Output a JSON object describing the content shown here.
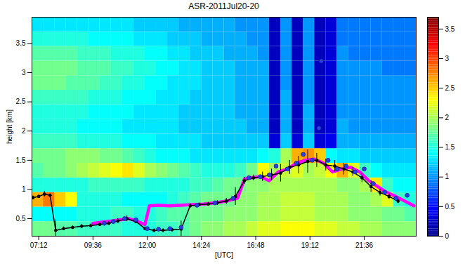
{
  "chart_data": {
    "type": "heatmap",
    "title": "ASR-2011Jul20-20",
    "xlabel": "[UTC]",
    "ylabel": "height [km]",
    "xlim": [
      6.9,
      23.9
    ],
    "xticks": [
      {
        "value": 7.2,
        "label": "07:12"
      },
      {
        "value": 9.6,
        "label": "09:36"
      },
      {
        "value": 12,
        "label": "12:00"
      },
      {
        "value": 14.4,
        "label": "14:24"
      },
      {
        "value": 16.8,
        "label": "16:48"
      },
      {
        "value": 19.2,
        "label": "19:12"
      },
      {
        "value": 21.6,
        "label": "21:36"
      }
    ],
    "ylim": [
      0.2,
      3.95
    ],
    "yticks": [
      0.5,
      1,
      1.5,
      2,
      2.5,
      3,
      3.5
    ],
    "heatmap": {
      "x_edges": [
        6.9,
        7.4,
        7.9,
        8.4,
        8.9,
        9.4,
        9.9,
        10.4,
        10.9,
        11.4,
        11.9,
        12.4,
        12.9,
        13.4,
        13.9,
        14.4,
        14.9,
        15.4,
        15.9,
        16.4,
        16.9,
        17.4,
        17.9,
        18.4,
        18.9,
        19.4,
        19.9,
        20.4,
        20.9,
        21.4,
        21.9,
        22.4,
        22.9,
        23.4,
        23.9
      ],
      "y_edges": [
        0.2,
        0.45,
        0.7,
        0.95,
        1.2,
        1.45,
        1.7,
        1.95,
        2.2,
        2.45,
        2.7,
        2.95,
        3.2,
        3.45,
        3.7,
        3.95
      ],
      "values": [
        [
          1.8,
          1.8,
          1.7,
          1.7,
          1.6,
          1.6,
          1.6,
          1.6,
          1.5,
          1.5,
          1.5,
          1.6,
          1.6,
          1.7,
          1.8,
          1.9,
          1.9,
          2.0,
          2.0,
          2.1,
          2.2,
          2.2,
          2.3,
          2.3,
          2.3,
          2.2,
          2.2,
          2.1,
          2.1,
          2.0,
          2.0,
          1.9,
          1.9,
          1.9
        ],
        [
          1.4,
          1.4,
          1.4,
          1.4,
          1.5,
          1.5,
          1.5,
          1.6,
          1.6,
          1.5,
          1.5,
          1.6,
          1.7,
          1.7,
          1.8,
          1.8,
          1.8,
          1.9,
          1.9,
          1.9,
          2.0,
          2.0,
          2.1,
          2.1,
          2.1,
          2.0,
          2.0,
          2.0,
          1.9,
          1.9,
          1.9,
          1.8,
          1.8,
          1.7
        ],
        [
          2.6,
          2.8,
          2.5,
          2.3,
          1.5,
          1.5,
          1.5,
          1.5,
          1.4,
          1.4,
          1.4,
          1.4,
          1.5,
          1.6,
          1.7,
          1.8,
          1.8,
          1.8,
          1.9,
          1.9,
          2.0,
          2.0,
          2.1,
          2.1,
          2.1,
          2.0,
          2.0,
          2.0,
          1.9,
          1.9,
          2.0,
          2.2,
          1.6,
          1.5
        ],
        [
          1.5,
          1.5,
          1.5,
          1.5,
          1.5,
          1.6,
          1.6,
          1.6,
          1.6,
          1.6,
          1.5,
          1.5,
          1.5,
          1.5,
          1.6,
          1.6,
          1.7,
          1.8,
          1.8,
          1.9,
          1.9,
          2.0,
          2.0,
          2.0,
          2.0,
          2.0,
          2.0,
          1.9,
          1.9,
          2.0,
          2.4,
          1.6,
          1.4,
          1.4
        ],
        [
          1.7,
          1.8,
          1.8,
          1.9,
          2.0,
          2.1,
          2.2,
          2.3,
          2.4,
          2.2,
          2.0,
          1.9,
          1.8,
          1.7,
          1.6,
          1.5,
          1.5,
          1.5,
          1.6,
          1.8,
          2.3,
          2.0,
          2.1,
          2.2,
          2.0,
          2.1,
          2.3,
          2.6,
          2.2,
          1.6,
          1.4,
          1.3,
          1.3,
          1.3
        ],
        [
          1.8,
          1.8,
          1.8,
          1.9,
          1.9,
          1.9,
          1.8,
          1.8,
          1.7,
          1.6,
          1.5,
          1.4,
          1.4,
          1.4,
          1.3,
          1.3,
          1.3,
          1.3,
          1.3,
          1.3,
          1.4,
          1.5,
          2.0,
          2.6,
          2.7,
          2.5,
          1.4,
          1.3,
          1.3,
          1.2,
          1.2,
          1.2,
          1.2,
          1.2
        ],
        [
          1.6,
          1.6,
          1.6,
          1.6,
          1.5,
          1.5,
          1.5,
          1.5,
          1.4,
          1.4,
          1.4,
          1.3,
          1.3,
          1.3,
          1.3,
          1.2,
          1.2,
          1.2,
          1.2,
          1.2,
          1.2,
          0.3,
          1.2,
          0.3,
          1.2,
          0.3,
          0.4,
          1.1,
          1.1,
          1.1,
          1.1,
          1.1,
          1.1,
          1.1
        ],
        [
          1.5,
          1.5,
          1.5,
          1.5,
          1.4,
          1.4,
          1.4,
          1.4,
          1.3,
          1.3,
          1.3,
          1.3,
          1.3,
          1.2,
          1.2,
          1.2,
          1.2,
          1.2,
          1.2,
          1.1,
          1.1,
          0.2,
          1.1,
          0.2,
          1.1,
          0.2,
          0.3,
          1.1,
          1.0,
          1.0,
          1.0,
          1.0,
          1.0,
          1.0
        ],
        [
          1.5,
          1.5,
          1.5,
          1.5,
          1.5,
          1.4,
          1.4,
          1.4,
          1.4,
          1.3,
          1.3,
          1.3,
          1.3,
          1.2,
          1.2,
          1.2,
          1.2,
          1.2,
          1.1,
          1.1,
          1.1,
          0.2,
          1.1,
          0.2,
          1.1,
          0.2,
          0.3,
          1.0,
          1.0,
          1.0,
          1.0,
          1.0,
          1.0,
          1.0
        ],
        [
          1.6,
          1.6,
          1.6,
          1.6,
          1.6,
          1.5,
          1.5,
          1.5,
          1.4,
          1.4,
          1.4,
          1.3,
          1.3,
          1.3,
          1.2,
          1.2,
          1.2,
          1.2,
          1.1,
          1.1,
          1.1,
          0.2,
          1.1,
          0.2,
          1.0,
          0.2,
          0.3,
          1.0,
          1.0,
          1.0,
          1.0,
          1.0,
          1.0,
          1.0
        ],
        [
          1.8,
          1.8,
          1.8,
          1.7,
          1.7,
          1.7,
          1.6,
          1.6,
          1.5,
          1.5,
          1.4,
          1.4,
          1.3,
          1.3,
          1.3,
          1.2,
          1.2,
          1.2,
          1.1,
          1.1,
          1.1,
          0.2,
          1.0,
          0.2,
          1.0,
          0.2,
          0.3,
          1.0,
          1.0,
          1.0,
          1.0,
          1.0,
          1.0,
          1.0
        ],
        [
          1.8,
          1.8,
          1.8,
          1.8,
          1.7,
          1.7,
          1.7,
          1.6,
          1.6,
          1.5,
          1.5,
          1.4,
          1.4,
          1.3,
          1.3,
          1.2,
          1.2,
          1.2,
          1.1,
          1.1,
          1.1,
          0.2,
          1.0,
          0.2,
          1.0,
          0.2,
          0.3,
          1.0,
          1.0,
          1.0,
          1.0,
          0.9,
          0.9,
          0.9
        ],
        [
          1.7,
          1.7,
          1.7,
          1.7,
          1.6,
          1.6,
          1.6,
          1.5,
          1.5,
          1.5,
          1.4,
          1.4,
          1.3,
          1.3,
          1.2,
          1.2,
          1.2,
          1.1,
          1.1,
          1.1,
          1.0,
          0.2,
          1.0,
          0.2,
          1.0,
          0.2,
          0.3,
          1.0,
          0.9,
          0.9,
          0.9,
          0.9,
          0.9,
          0.9
        ],
        [
          1.5,
          1.5,
          1.5,
          1.5,
          1.5,
          1.4,
          1.4,
          1.4,
          1.4,
          1.3,
          1.3,
          1.3,
          1.2,
          1.2,
          1.2,
          1.1,
          1.1,
          1.1,
          1.1,
          1.0,
          1.0,
          0.2,
          1.0,
          0.2,
          1.0,
          0.2,
          0.3,
          0.9,
          0.9,
          0.9,
          0.9,
          0.9,
          0.9,
          0.9
        ],
        [
          1.3,
          1.3,
          1.3,
          1.3,
          1.3,
          1.3,
          1.3,
          1.3,
          1.3,
          1.2,
          1.2,
          1.2,
          1.2,
          1.1,
          1.1,
          1.1,
          1.1,
          1.1,
          1.0,
          1.0,
          1.0,
          0.2,
          1.0,
          0.2,
          1.0,
          0.2,
          0.3,
          0.9,
          0.9,
          0.9,
          0.9,
          0.9,
          0.9,
          0.9
        ]
      ]
    },
    "colorbar": {
      "range": [
        0,
        3.7
      ],
      "ticks": [
        0,
        0.5,
        1,
        1.5,
        2,
        2.5,
        3,
        3.5
      ]
    },
    "series": [
      {
        "type": "line",
        "color": "#ff00ff",
        "marker": "none",
        "x": [
          9.6,
          10.0,
          10.4,
          10.8,
          11.2,
          11.6,
          11.9,
          12.1,
          12.5,
          13.0,
          13.5,
          14.0,
          14.5,
          15.0,
          15.5,
          16.0,
          16.3,
          16.6,
          17.0,
          17.4,
          17.8,
          18.2,
          18.6,
          19.0,
          19.4,
          19.8,
          20.2,
          20.6,
          21.0,
          21.4,
          21.8,
          22.2,
          22.6,
          23.0,
          23.4,
          23.8
        ],
        "values": [
          0.42,
          0.44,
          0.46,
          0.48,
          0.5,
          0.45,
          0.4,
          0.72,
          0.73,
          0.72,
          0.73,
          0.74,
          0.75,
          0.77,
          0.8,
          0.85,
          1.18,
          1.2,
          1.22,
          1.15,
          1.3,
          1.35,
          1.45,
          1.5,
          1.52,
          1.45,
          1.3,
          1.35,
          1.38,
          1.3,
          1.15,
          1.05,
          0.95,
          0.88,
          0.8,
          0.72
        ]
      },
      {
        "type": "line",
        "color": "#000000",
        "marker": "o",
        "x": [
          6.95,
          7.2,
          7.45,
          7.7,
          7.95,
          8.3,
          8.7,
          9.1,
          9.5,
          9.9,
          10.3,
          10.7,
          11.1,
          11.5,
          11.9,
          12.3,
          12.7,
          13.1,
          13.5,
          13.9,
          14.3,
          14.7,
          15.1,
          15.5,
          15.9,
          16.3,
          16.7,
          17.1,
          17.5,
          17.9,
          18.3,
          18.7,
          19.1,
          19.5,
          19.9,
          20.3,
          20.7,
          21.1,
          21.5,
          21.9,
          22.3,
          22.7,
          23.1
        ],
        "values": [
          0.86,
          0.88,
          0.92,
          0.9,
          0.3,
          0.33,
          0.35,
          0.37,
          0.38,
          0.4,
          0.42,
          0.46,
          0.5,
          0.45,
          0.33,
          0.3,
          0.3,
          0.31,
          0.32,
          0.72,
          0.74,
          0.75,
          0.77,
          0.8,
          0.88,
          1.15,
          1.2,
          1.22,
          1.25,
          1.28,
          1.38,
          1.42,
          1.48,
          1.5,
          1.42,
          1.4,
          1.35,
          1.3,
          1.2,
          1.05,
          0.95,
          0.88,
          0.8
        ],
        "errors": [
          0.03,
          0.03,
          0.05,
          0.03,
          0.18,
          0.03,
          0.03,
          0.03,
          0.03,
          0.03,
          0.03,
          0.04,
          0.05,
          0.03,
          0.03,
          0.03,
          0.03,
          0.03,
          0.14,
          0.04,
          0.03,
          0.03,
          0.04,
          0.05,
          0.15,
          0.06,
          0.05,
          0.08,
          0.1,
          0.15,
          0.12,
          0.15,
          0.2,
          0.12,
          0.1,
          0.1,
          0.1,
          0.08,
          0.08,
          0.1,
          0.06,
          0.05,
          0.04
        ]
      },
      {
        "type": "scatter",
        "color": "#2a3fe0",
        "marker": "o",
        "x": [
          10.1,
          10.5,
          11.0,
          11.5,
          12.0,
          12.5,
          13.0,
          13.5,
          14.2,
          15.0,
          15.8,
          16.5,
          17.0,
          17.4,
          17.7,
          18.2,
          18.6,
          18.9,
          19.3,
          19.6,
          19.7,
          20.0,
          20.4,
          20.8,
          21.2,
          21.6,
          22.0,
          22.5,
          23.0,
          23.5
        ],
        "values": [
          0.42,
          0.45,
          0.5,
          0.48,
          0.33,
          0.32,
          0.33,
          0.35,
          0.73,
          0.77,
          0.85,
          1.2,
          1.22,
          1.25,
          1.4,
          1.35,
          1.45,
          1.6,
          1.5,
          2.05,
          3.2,
          1.5,
          1.35,
          1.4,
          1.3,
          1.35,
          1.1,
          0.95,
          0.85,
          0.9
        ]
      }
    ]
  }
}
